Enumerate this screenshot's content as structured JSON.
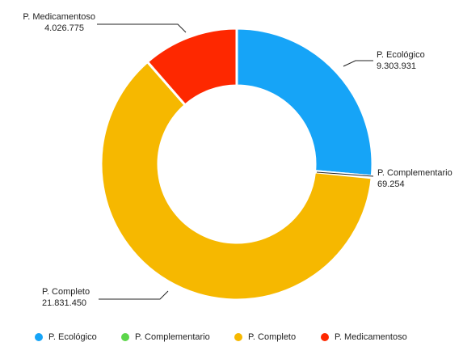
{
  "chart_data": {
    "type": "donut",
    "categories": [
      "P. Ecológico",
      "P. Complementario",
      "P. Completo",
      "P. Medicamentoso"
    ],
    "values": [
      9303931,
      69254,
      21831450,
      4026775
    ],
    "value_labels": [
      "9.303.931",
      "69.254",
      "21.831.450",
      "4.026.775"
    ],
    "colors": [
      "#16a4f7",
      "#5cd64a",
      "#f6b800",
      "#fe2800"
    ],
    "legend": "bottom"
  }
}
